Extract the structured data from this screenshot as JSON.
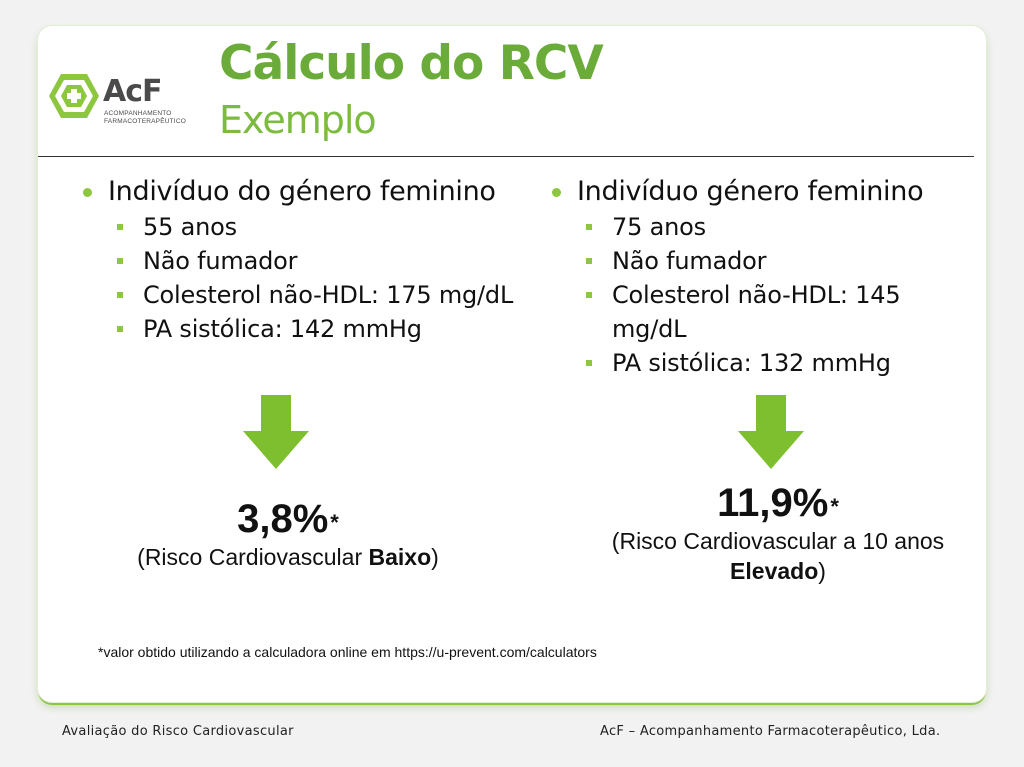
{
  "logo": {
    "name": "AcF",
    "subtitle_line1": "ACOMPANHAMENTO",
    "subtitle_line2": "FARMACOTERAPÊUTICO"
  },
  "title": "Cálculo do RCV",
  "subtitle": "Exemplo",
  "left": {
    "heading": "Indivíduo do género feminino",
    "items": [
      "55 anos",
      "Não fumador",
      "Colesterol não-HDL: 175 mg/dL",
      "PA sistólica: 142 mmHg"
    ],
    "result_value": "3,8%",
    "result_mark": "*",
    "result_desc_prefix": "(Risco Cardiovascular ",
    "result_desc_bold": "Baixo",
    "result_desc_suffix": ")"
  },
  "right": {
    "heading": "Indivíduo género feminino",
    "items": [
      "75 anos",
      "Não fumador",
      "Colesterol não-HDL: 145 mg/dL",
      "PA sistólica: 132 mmHg"
    ],
    "result_value": "11,9%",
    "result_mark": "*",
    "result_desc_prefix": "(Risco Cardiovascular a 10 anos ",
    "result_desc_bold": "Elevado",
    "result_desc_suffix": ")"
  },
  "footnote": "*valor obtido utilizando a calculadora online em https://u-prevent.com/calculators",
  "footer": {
    "left": "Avaliação do Risco Cardiovascular",
    "right": "AcF – Acompanhamento Farmacoterapêutico, Lda."
  },
  "colors": {
    "accent": "#8dc63f",
    "title": "#6aab3a",
    "arrow": "#7dbf2e"
  },
  "icons": [
    "acf-logo-icon",
    "down-arrow-icon"
  ]
}
